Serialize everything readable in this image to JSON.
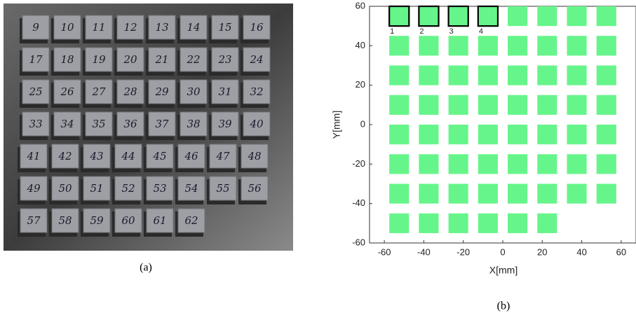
{
  "photo": {
    "labels": [
      [
        "9",
        "10",
        "11",
        "12",
        "13",
        "14",
        "15",
        "16"
      ],
      [
        "17",
        "18",
        "19",
        "20",
        "21",
        "22",
        "23",
        "24"
      ],
      [
        "25",
        "26",
        "27",
        "28",
        "29",
        "30",
        "31",
        "32"
      ],
      [
        "33",
        "34",
        "35",
        "36",
        "37",
        "38",
        "39",
        "40"
      ],
      [
        "41",
        "42",
        "43",
        "44",
        "45",
        "46",
        "47",
        "48"
      ],
      [
        "49",
        "50",
        "51",
        "52",
        "53",
        "54",
        "55",
        "56"
      ],
      [
        "57",
        "58",
        "59",
        "60",
        "61",
        "62"
      ]
    ]
  },
  "captions": [
    "(a)",
    "(b)"
  ],
  "chart_data": {
    "type": "scatter",
    "xlabel": "X[mm]",
    "ylabel": "Y[mm]",
    "x": [
      -52.5,
      -37.5,
      -22.5,
      -7.5,
      7.5,
      22.5,
      37.5,
      52.5,
      -52.5,
      -37.5,
      -22.5,
      -7.5,
      7.5,
      22.5,
      37.5,
      52.5,
      -52.5,
      -37.5,
      -22.5,
      -7.5,
      7.5,
      22.5,
      37.5,
      52.5,
      -52.5,
      -37.5,
      -22.5,
      -7.5,
      7.5,
      22.5,
      37.5,
      52.5,
      -52.5,
      -37.5,
      -22.5,
      -7.5,
      7.5,
      22.5,
      37.5,
      52.5,
      -52.5,
      -37.5,
      -22.5,
      -7.5,
      7.5,
      22.5,
      37.5,
      52.5,
      -52.5,
      -37.5,
      -22.5,
      -7.5,
      7.5,
      22.5,
      37.5,
      52.5,
      -52.5,
      -37.5,
      -22.5,
      -7.5,
      7.5,
      22.5
    ],
    "y": [
      55,
      55,
      55,
      55,
      55,
      55,
      55,
      55,
      40,
      40,
      40,
      40,
      40,
      40,
      40,
      40,
      25,
      25,
      25,
      25,
      25,
      25,
      25,
      25,
      10,
      10,
      10,
      10,
      10,
      10,
      10,
      10,
      -5,
      -5,
      -5,
      -5,
      -5,
      -5,
      -5,
      -5,
      -20,
      -20,
      -20,
      -20,
      -20,
      -20,
      -20,
      -20,
      -35,
      -35,
      -35,
      -35,
      -35,
      -35,
      -35,
      -35,
      -50,
      -50,
      -50,
      -50,
      -50,
      -50
    ],
    "marker_size": 10,
    "color": "#66f58a",
    "highlight": {
      "x": [
        -52.5,
        -37.5,
        -22.5,
        -7.5
      ],
      "y": [
        55,
        55,
        55,
        55
      ],
      "labels": [
        "1",
        "2",
        "3",
        "4"
      ],
      "color": "#000000"
    },
    "xlim": [
      -67.5,
      67.5
    ],
    "ylim": [
      -60,
      60
    ],
    "xticks": [
      -60,
      -40,
      -20,
      0,
      20,
      40,
      60
    ],
    "yticks": [
      -60,
      -40,
      -20,
      0,
      20,
      40,
      60
    ]
  }
}
